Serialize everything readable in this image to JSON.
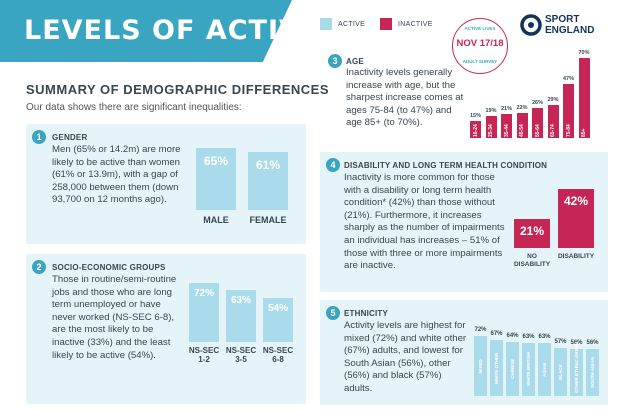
{
  "header": {
    "title": "LEVELS OF ACTIVITY",
    "summary_title": "SUMMARY OF DEMOGRAPHIC DIFFERENCES",
    "summary_sub": "Our data shows there are significant inequalities:"
  },
  "legend": {
    "active": "ACTIVE",
    "inactive": "INACTIVE"
  },
  "stamp": {
    "top": "ACTIVE LIVES",
    "date": "NOV 17/18",
    "bottom": "ADULT SURVEY"
  },
  "logo": {
    "line1": "SPORT",
    "line2": "ENGLAND"
  },
  "colors": {
    "teal": "#3aa5c0",
    "active": "#a9dbeb",
    "inactive": "#c62656",
    "panel": "#e4f4f9"
  },
  "sections": {
    "gender": {
      "num": "1",
      "title": "GENDER",
      "text": "Men (65% or 14.2m) are more likely to be active than women (61% or 13.9m), with a gap of 258,000 between them (down 93,700 on 12 months ago)."
    },
    "socio": {
      "num": "2",
      "title": "SOCIO-ECONOMIC GROUPS",
      "text": "Those in routine/semi-routine jobs and those who are long term unemployed or have never worked (NS-SEC 6-8), are the most likely to be inactive (33%) and the least likely to be active (54%)."
    },
    "age": {
      "num": "3",
      "title": "AGE",
      "text": "Inactivity levels generally increase with age, but the sharpest increase comes at ages 75-84 (to 47%) and age 85+ (to 70%)."
    },
    "disability": {
      "num": "4",
      "title": "DISABILITY AND LONG TERM HEALTH CONDITION",
      "text": "Inactivity is more common for those with a disability or long term health condition* (42%) than those without (21%). Furthermore, it increases sharply as the number of impairments an individual has increases – 51% of those with three or more impairments are inactive."
    },
    "ethnicity": {
      "num": "5",
      "title": "ETHNICITY",
      "text": "Activity levels are highest for mixed (72%) and white other (67%) adults, and lowest for South Asian (56%), other (56%) and black (57%) adults."
    }
  },
  "chart_data": [
    {
      "id": "gender",
      "type": "bar",
      "series_name": "Active",
      "categories": [
        "MALE",
        "FEMALE"
      ],
      "values": [
        65,
        61
      ],
      "value_labels": [
        "65%",
        "61%"
      ]
    },
    {
      "id": "socio",
      "type": "bar",
      "series_name": "Active",
      "categories": [
        "NS-SEC 1-2",
        "NS-SEC 3-5",
        "NS-SEC 6-8"
      ],
      "category_lines": [
        [
          "NS-SEC",
          "1-2"
        ],
        [
          "NS-SEC",
          "3-5"
        ],
        [
          "NS-SEC",
          "6-8"
        ]
      ],
      "values": [
        72,
        63,
        54
      ],
      "value_labels": [
        "72%",
        "63%",
        "54%"
      ]
    },
    {
      "id": "age",
      "type": "bar",
      "series_name": "Inactive",
      "categories": [
        "16-24",
        "25-34",
        "35-44",
        "45-54",
        "55-64",
        "65-74",
        "75-84",
        "85+"
      ],
      "values": [
        15,
        19,
        21,
        22,
        26,
        29,
        47,
        70
      ],
      "value_labels": [
        "15%",
        "19%",
        "21%",
        "22%",
        "26%",
        "29%",
        "47%",
        "70%"
      ]
    },
    {
      "id": "disability",
      "type": "bar",
      "series_name": "Inactive",
      "categories": [
        "NO DISABILITY",
        "DISABILITY"
      ],
      "category_lines": [
        [
          "NO",
          "DISABILITY"
        ],
        [
          "DISABILITY"
        ]
      ],
      "values": [
        21,
        42
      ],
      "value_labels": [
        "21%",
        "42%"
      ]
    },
    {
      "id": "ethnicity",
      "type": "bar",
      "series_name": "Active",
      "categories": [
        "MIXED",
        "WHITE OTHER",
        "CHINESE",
        "WHITE BRITISH",
        "ASIAN",
        "BLACK",
        "OTHER ETHNIC ORIGIN",
        "SOUTH ASIAN"
      ],
      "values": [
        72,
        67,
        64,
        63,
        63,
        57,
        56,
        56
      ],
      "value_labels": [
        "72%",
        "67%",
        "64%",
        "63%",
        "63%",
        "57%",
        "56%",
        "56%"
      ]
    }
  ]
}
